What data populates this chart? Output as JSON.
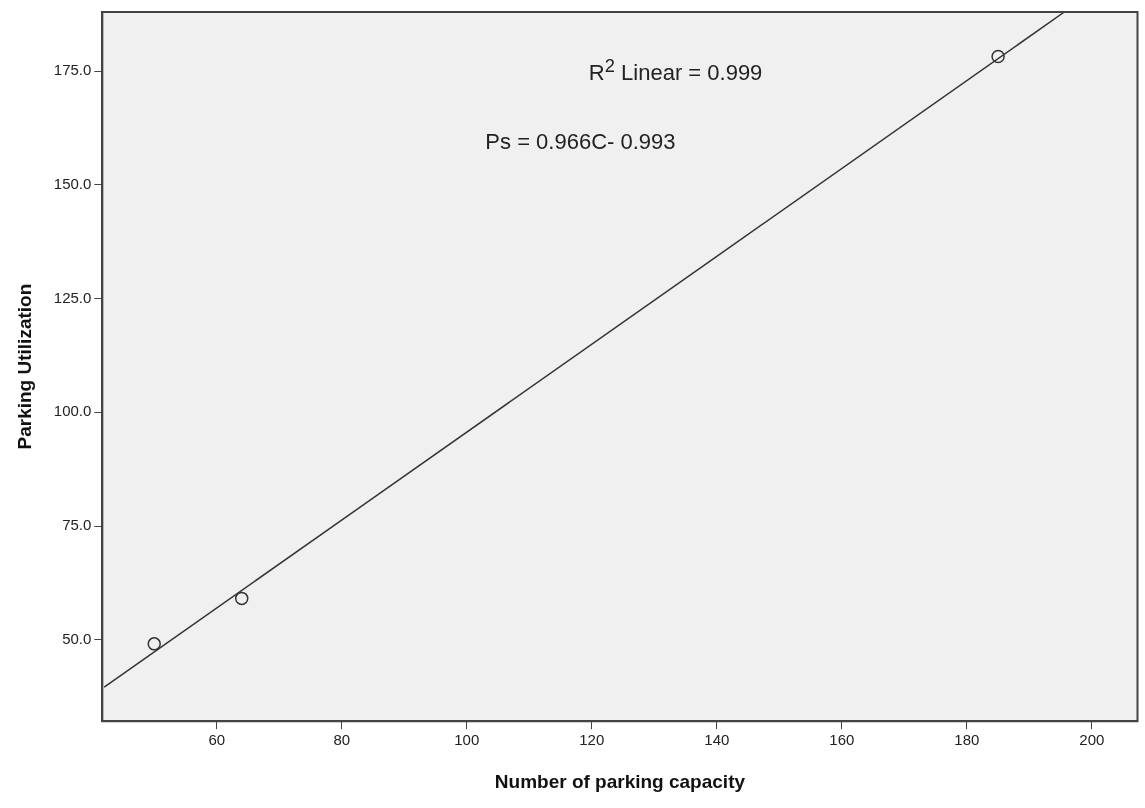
{
  "chart_data": {
    "type": "scatter",
    "xlabel": "Number of parking capacity",
    "ylabel": "Parking Utilization",
    "xlim": [
      41.7,
      207.3
    ],
    "xticks": [
      60,
      80,
      100,
      120,
      140,
      160,
      180,
      200
    ],
    "ylim": [
      32.1,
      188
    ],
    "yticks": [
      {
        "value": 50,
        "label": "50.0"
      },
      {
        "value": 75,
        "label": "75.0"
      },
      {
        "value": 100,
        "label": "100.0"
      },
      {
        "value": 125,
        "label": "125.0"
      },
      {
        "value": 150,
        "label": "150.0"
      },
      {
        "value": 175,
        "label": "175.0"
      }
    ],
    "grid": false,
    "legend": false,
    "marker": "circle",
    "series": [
      {
        "color": "#333333",
        "x": [
          50,
          64,
          185
        ],
        "values": [
          49.1,
          59.1,
          178.2
        ]
      },
      {
        "type": "line",
        "color": "#333333",
        "x": [
          42,
          195.6
        ],
        "values": [
          39.6,
          188.0
        ],
        "marker": "none"
      }
    ],
    "annotations": [
      "R$^{2}$ Linear = 0.999",
      "Ps = 0.966C- 0.993"
    ]
  }
}
